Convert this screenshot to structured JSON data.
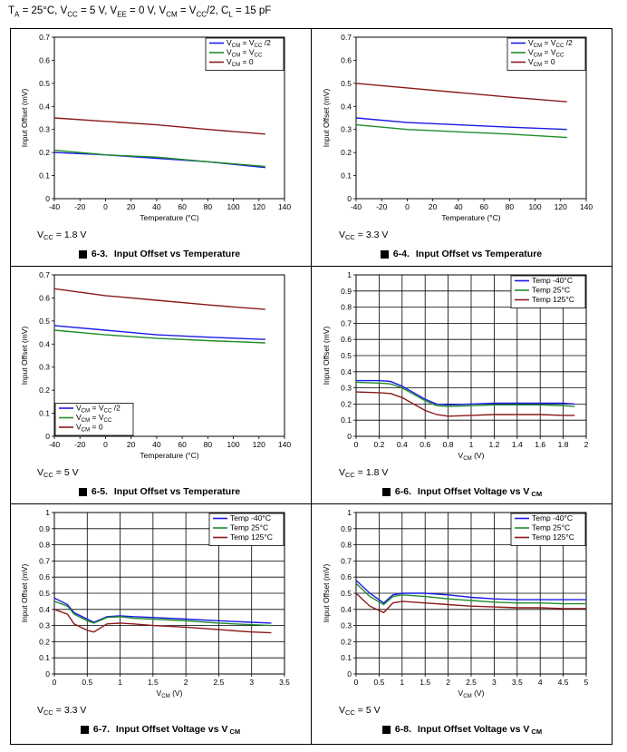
{
  "header": {
    "parts": [
      "T",
      "A",
      " = 25°C, V",
      "CC",
      " = 5 V, V",
      "EE",
      " = 0 V, V",
      "CM",
      " = V",
      "CC",
      "/2, C",
      "L",
      " = 15 pF"
    ]
  },
  "colors": {
    "blue": "#1a1ae6",
    "green": "#1f8c2a",
    "red": "#8b1a1a"
  },
  "charts": [
    {
      "id": "fig6-3",
      "caption_prefix": "6-3.",
      "caption_text": "Input Offset vs Temperature",
      "caption_sub": "",
      "vcc_label": "V",
      "vcc_sub": "CC",
      "vcc_value": " = 1.8 V",
      "chart_data": {
        "type": "line",
        "xlabel": "Temperature (°C)",
        "ylabel": "Input Offset (mV)",
        "xlim": [
          -40,
          140
        ],
        "ylim": [
          0,
          0.7
        ],
        "xticks": [
          "-40",
          "-20",
          "0",
          "20",
          "40",
          "60",
          "80",
          "100",
          "120",
          "140"
        ],
        "yticks": [
          "0",
          "0.1",
          "0.2",
          "0.3",
          "0.4",
          "0.5",
          "0.6",
          "0.7"
        ],
        "grid": false,
        "legend_position": "top-right",
        "series": [
          {
            "name": "VCM = VCC /2",
            "label_main": [
              "V",
              "CM",
              " = V",
              "CC",
              " /2"
            ],
            "color": "#1a1ae6",
            "x": [
              -40,
              0,
              40,
              80,
              125
            ],
            "y": [
              0.2,
              0.19,
              0.175,
              0.16,
              0.135
            ]
          },
          {
            "name": "VCM = VCC",
            "label_main": [
              "V",
              "CM",
              " = V",
              "CC",
              ""
            ],
            "color": "#1f8c2a",
            "x": [
              -40,
              0,
              40,
              80,
              125
            ],
            "y": [
              0.21,
              0.19,
              0.18,
              0.16,
              0.14
            ]
          },
          {
            "name": "VCM = 0",
            "label_main": [
              "V",
              "CM",
              " = 0",
              "",
              ""
            ],
            "color": "#8b1a1a",
            "x": [
              -40,
              0,
              40,
              80,
              125
            ],
            "y": [
              0.35,
              0.335,
              0.32,
              0.3,
              0.28
            ]
          }
        ]
      }
    },
    {
      "id": "fig6-4",
      "caption_prefix": "6-4.",
      "caption_text": "Input Offset vs Temperature",
      "caption_sub": "",
      "vcc_label": "V",
      "vcc_sub": "CC",
      "vcc_value": " = 3.3 V",
      "chart_data": {
        "type": "line",
        "xlabel": "Temperature (°C)",
        "ylabel": "Input Offset (mV)",
        "xlim": [
          -40,
          140
        ],
        "ylim": [
          0,
          0.7
        ],
        "xticks": [
          "-40",
          "-20",
          "0",
          "20",
          "40",
          "60",
          "80",
          "100",
          "120",
          "140"
        ],
        "yticks": [
          "0",
          "0.1",
          "0.2",
          "0.3",
          "0.4",
          "0.5",
          "0.6",
          "0.7"
        ],
        "grid": false,
        "legend_position": "top-right",
        "series": [
          {
            "name": "VCM = VCC /2",
            "label_main": [
              "V",
              "CM",
              " = V",
              "CC",
              " /2"
            ],
            "color": "#1a1ae6",
            "x": [
              -40,
              0,
              40,
              80,
              125
            ],
            "y": [
              0.35,
              0.33,
              0.32,
              0.31,
              0.3
            ]
          },
          {
            "name": "VCM = VCC",
            "label_main": [
              "V",
              "CM",
              " = V",
              "CC",
              ""
            ],
            "color": "#1f8c2a",
            "x": [
              -40,
              0,
              40,
              80,
              125
            ],
            "y": [
              0.32,
              0.3,
              0.29,
              0.28,
              0.265
            ]
          },
          {
            "name": "VCM = 0",
            "label_main": [
              "V",
              "CM",
              " = 0",
              "",
              ""
            ],
            "color": "#8b1a1a",
            "x": [
              -40,
              0,
              40,
              80,
              125
            ],
            "y": [
              0.5,
              0.48,
              0.46,
              0.44,
              0.42
            ]
          }
        ]
      }
    },
    {
      "id": "fig6-5",
      "caption_prefix": "6-5.",
      "caption_text": "Input Offset vs Temperature",
      "caption_sub": "",
      "vcc_label": "V",
      "vcc_sub": "CC",
      "vcc_value": " = 5 V",
      "chart_data": {
        "type": "line",
        "xlabel": "Temperature (°C)",
        "ylabel": "Input Offset (mV)",
        "xlim": [
          -40,
          140
        ],
        "ylim": [
          0,
          0.7
        ],
        "xticks": [
          "-40",
          "-20",
          "0",
          "20",
          "40",
          "60",
          "80",
          "100",
          "120",
          "140"
        ],
        "yticks": [
          "0",
          "0.1",
          "0.2",
          "0.3",
          "0.4",
          "0.5",
          "0.6",
          "0.7"
        ],
        "grid": false,
        "legend_position": "bottom-left",
        "series": [
          {
            "name": "VCM = VCC /2",
            "label_main": [
              "V",
              "CM",
              " = V",
              "CC",
              " /2"
            ],
            "color": "#1a1ae6",
            "x": [
              -40,
              0,
              40,
              80,
              125
            ],
            "y": [
              0.48,
              0.46,
              0.44,
              0.43,
              0.42
            ]
          },
          {
            "name": "VCM = VCC",
            "label_main": [
              "V",
              "CM",
              " = V",
              "CC",
              ""
            ],
            "color": "#1f8c2a",
            "x": [
              -40,
              0,
              40,
              80,
              125
            ],
            "y": [
              0.46,
              0.44,
              0.425,
              0.415,
              0.405
            ]
          },
          {
            "name": "VCM = 0",
            "label_main": [
              "V",
              "CM",
              " = 0",
              "",
              ""
            ],
            "color": "#8b1a1a",
            "x": [
              -40,
              0,
              40,
              80,
              125
            ],
            "y": [
              0.64,
              0.61,
              0.59,
              0.57,
              0.55
            ]
          }
        ]
      }
    },
    {
      "id": "fig6-6",
      "caption_prefix": "6-6.",
      "caption_text": "Input Offset Voltage vs V",
      "caption_sub": "CM",
      "vcc_label": "V",
      "vcc_sub": "CC",
      "vcc_value": " = 1.8 V",
      "chart_data": {
        "type": "line",
        "xlabel": "V",
        "xlabel_sub": "CM",
        "xlabel_tail": " (V)",
        "ylabel": "Input Offset (mV)",
        "xlim": [
          0,
          2
        ],
        "ylim": [
          0,
          1
        ],
        "xticks": [
          "0",
          "0.2",
          "0.4",
          "0.6",
          "0.8",
          "1",
          "1.2",
          "1.4",
          "1.6",
          "1.8",
          "2"
        ],
        "yticks": [
          "0",
          "0.1",
          "0.2",
          "0.3",
          "0.4",
          "0.5",
          "0.6",
          "0.7",
          "0.8",
          "0.9",
          "1"
        ],
        "grid": true,
        "legend_position": "top-right",
        "series": [
          {
            "name": "Temp -40°C",
            "label_main": [
              "Temp -40°C",
              "",
              "",
              "",
              ""
            ],
            "color": "#1a1ae6",
            "x": [
              0,
              0.2,
              0.3,
              0.4,
              0.5,
              0.6,
              0.7,
              0.8,
              1.0,
              1.2,
              1.4,
              1.6,
              1.8,
              1.9
            ],
            "y": [
              0.345,
              0.345,
              0.34,
              0.31,
              0.27,
              0.23,
              0.2,
              0.195,
              0.2,
              0.205,
              0.205,
              0.205,
              0.205,
              0.2
            ]
          },
          {
            "name": "Temp 25°C",
            "label_main": [
              "Temp 25°C",
              "",
              "",
              "",
              ""
            ],
            "color": "#1f8c2a",
            "x": [
              0,
              0.2,
              0.3,
              0.4,
              0.5,
              0.6,
              0.7,
              0.8,
              1.0,
              1.2,
              1.4,
              1.6,
              1.8,
              1.9
            ],
            "y": [
              0.335,
              0.33,
              0.325,
              0.3,
              0.26,
              0.22,
              0.19,
              0.185,
              0.19,
              0.195,
              0.195,
              0.195,
              0.19,
              0.185
            ]
          },
          {
            "name": "Temp 125°C",
            "label_main": [
              "Temp 125°C",
              "",
              "",
              "",
              ""
            ],
            "color": "#8b1a1a",
            "x": [
              0,
              0.2,
              0.3,
              0.4,
              0.5,
              0.6,
              0.7,
              0.8,
              1.0,
              1.2,
              1.4,
              1.6,
              1.8,
              1.9
            ],
            "y": [
              0.275,
              0.27,
              0.265,
              0.24,
              0.2,
              0.16,
              0.135,
              0.125,
              0.13,
              0.135,
              0.135,
              0.135,
              0.13,
              0.13
            ]
          }
        ]
      }
    },
    {
      "id": "fig6-7",
      "caption_prefix": "6-7.",
      "caption_text": "Input Offset Voltage vs V",
      "caption_sub": "CM",
      "vcc_label": "V",
      "vcc_sub": "CC",
      "vcc_value": " = 3.3 V",
      "chart_data": {
        "type": "line",
        "xlabel": "V",
        "xlabel_sub": "CM",
        "xlabel_tail": " (V)",
        "ylabel": "Input Offset (mV)",
        "xlim": [
          0,
          3.5
        ],
        "ylim": [
          0,
          1
        ],
        "xticks": [
          "0",
          "0.5",
          "1",
          "1.5",
          "2",
          "2.5",
          "3",
          "3.5"
        ],
        "yticks": [
          "0",
          "0.1",
          "0.2",
          "0.3",
          "0.4",
          "0.5",
          "0.6",
          "0.7",
          "0.8",
          "0.9",
          "1"
        ],
        "grid": true,
        "legend_position": "top-right",
        "series": [
          {
            "name": "Temp -40°C",
            "label_main": [
              "Temp -40°C",
              "",
              "",
              "",
              ""
            ],
            "color": "#1a1ae6",
            "x": [
              0,
              0.2,
              0.3,
              0.5,
              0.6,
              0.8,
              1.0,
              1.2,
              1.5,
              2.0,
              2.5,
              3.0,
              3.3
            ],
            "y": [
              0.47,
              0.43,
              0.38,
              0.34,
              0.32,
              0.355,
              0.36,
              0.355,
              0.35,
              0.34,
              0.33,
              0.32,
              0.315
            ]
          },
          {
            "name": "Temp 25°C",
            "label_main": [
              "Temp 25°C",
              "",
              "",
              "",
              ""
            ],
            "color": "#1f8c2a",
            "x": [
              0,
              0.2,
              0.3,
              0.5,
              0.6,
              0.8,
              1.0,
              1.2,
              1.5,
              2.0,
              2.5,
              3.0,
              3.3
            ],
            "y": [
              0.45,
              0.42,
              0.37,
              0.33,
              0.315,
              0.35,
              0.355,
              0.345,
              0.34,
              0.33,
              0.315,
              0.305,
              0.3
            ]
          },
          {
            "name": "Temp 125°C",
            "label_main": [
              "Temp 125°C",
              "",
              "",
              "",
              ""
            ],
            "color": "#8b1a1a",
            "x": [
              0,
              0.2,
              0.3,
              0.5,
              0.6,
              0.8,
              1.0,
              1.2,
              1.5,
              2.0,
              2.5,
              3.0,
              3.3
            ],
            "y": [
              0.4,
              0.37,
              0.31,
              0.27,
              0.26,
              0.31,
              0.315,
              0.31,
              0.3,
              0.29,
              0.275,
              0.26,
              0.255
            ]
          }
        ]
      }
    },
    {
      "id": "fig6-8",
      "caption_prefix": "6-8.",
      "caption_text": "Input Offset Voltage vs V",
      "caption_sub": "CM",
      "vcc_label": "V",
      "vcc_sub": "CC",
      "vcc_value": " = 5 V",
      "chart_data": {
        "type": "line",
        "xlabel": "V",
        "xlabel_sub": "CM",
        "xlabel_tail": " (V)",
        "ylabel": "Input Offset (mV)",
        "xlim": [
          0,
          5
        ],
        "ylim": [
          0,
          1
        ],
        "xticks": [
          "0",
          "0.5",
          "1",
          "1.5",
          "2",
          "2.5",
          "3",
          "3.5",
          "4",
          "4.5",
          "5"
        ],
        "yticks": [
          "0",
          "0.1",
          "0.2",
          "0.3",
          "0.4",
          "0.5",
          "0.6",
          "0.7",
          "0.8",
          "0.9",
          "1"
        ],
        "grid": true,
        "legend_position": "top-right",
        "series": [
          {
            "name": "Temp -40°C",
            "label_main": [
              "Temp -40°C",
              "",
              "",
              "",
              ""
            ],
            "color": "#1a1ae6",
            "x": [
              0,
              0.3,
              0.6,
              0.8,
              1.0,
              1.5,
              2.0,
              2.5,
              3.0,
              3.5,
              4.0,
              4.5,
              5.0
            ],
            "y": [
              0.58,
              0.5,
              0.44,
              0.49,
              0.5,
              0.5,
              0.49,
              0.475,
              0.465,
              0.46,
              0.46,
              0.46,
              0.46
            ]
          },
          {
            "name": "Temp 25°C",
            "label_main": [
              "Temp 25°C",
              "",
              "",
              "",
              ""
            ],
            "color": "#1f8c2a",
            "x": [
              0,
              0.3,
              0.6,
              0.8,
              1.0,
              1.5,
              2.0,
              2.5,
              3.0,
              3.5,
              4.0,
              4.5,
              5.0
            ],
            "y": [
              0.56,
              0.48,
              0.43,
              0.48,
              0.49,
              0.48,
              0.465,
              0.455,
              0.445,
              0.44,
              0.44,
              0.435,
              0.435
            ]
          },
          {
            "name": "Temp 125°C",
            "label_main": [
              "Temp 125°C",
              "",
              "",
              "",
              ""
            ],
            "color": "#8b1a1a",
            "x": [
              0,
              0.3,
              0.6,
              0.8,
              1.0,
              1.5,
              2.0,
              2.5,
              3.0,
              3.5,
              4.0,
              4.5,
              5.0
            ],
            "y": [
              0.5,
              0.42,
              0.38,
              0.44,
              0.45,
              0.44,
              0.43,
              0.42,
              0.415,
              0.41,
              0.41,
              0.405,
              0.405
            ]
          }
        ]
      }
    }
  ]
}
